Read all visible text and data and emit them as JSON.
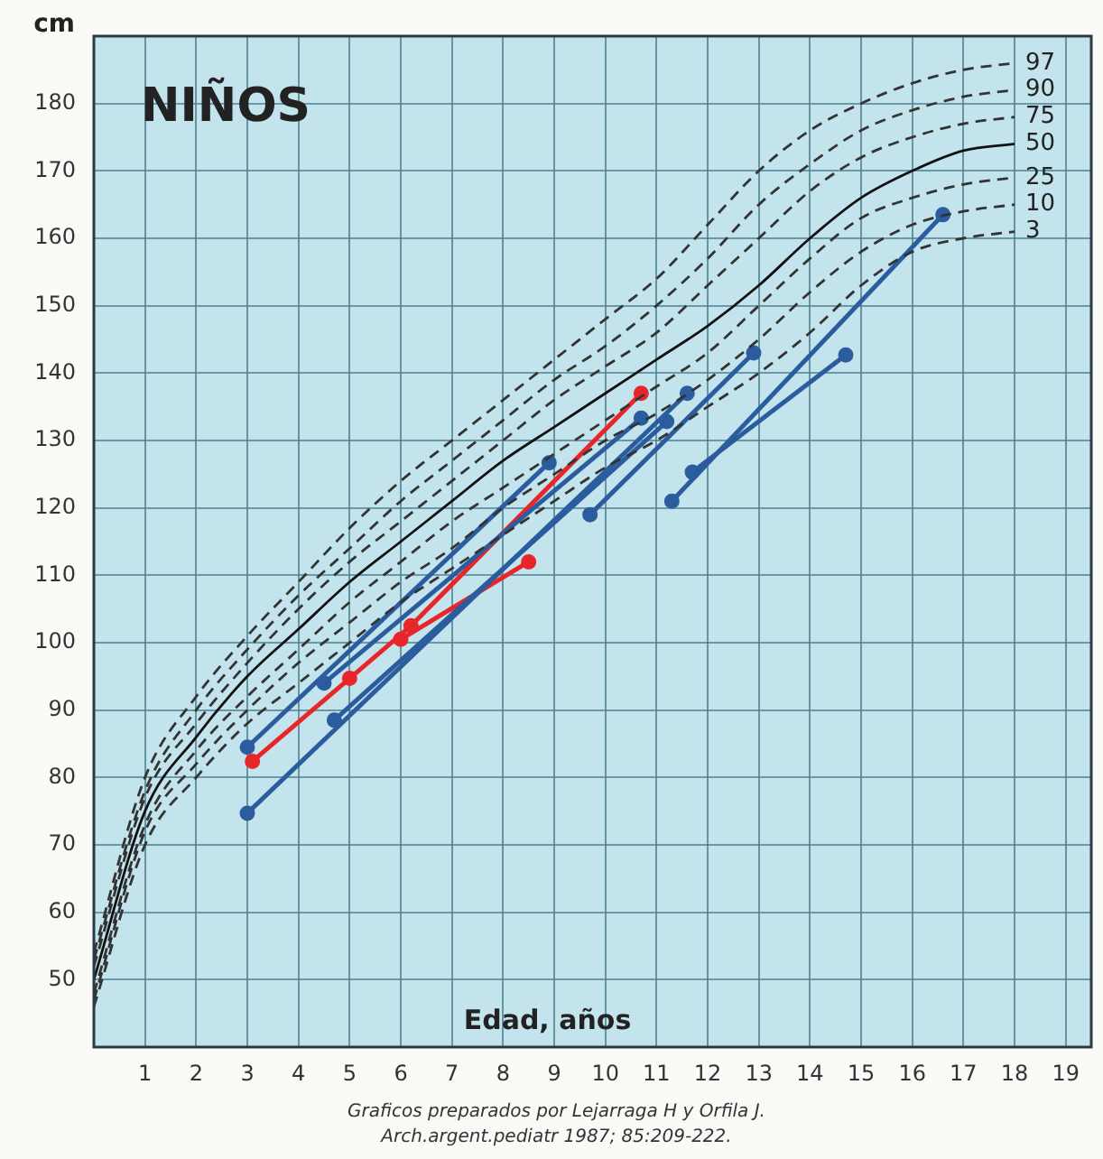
{
  "chart_data": {
    "type": "line",
    "title": "NIÑOS",
    "xlabel": "Edad, años",
    "ylabel": "cm",
    "annotations": [
      "Graficos preparados por Lejarraga H y Orfila J.",
      "Arch.argent.pediatr 1987; 85:209-222."
    ],
    "xlim": [
      0,
      19.5
    ],
    "xticks": [
      1,
      2,
      3,
      4,
      5,
      6,
      7,
      8,
      9,
      10,
      11,
      12,
      13,
      14,
      15,
      16,
      17,
      18,
      19
    ],
    "ylim": [
      40,
      190
    ],
    "yticks": [
      50,
      60,
      70,
      80,
      90,
      100,
      110,
      120,
      130,
      140,
      150,
      160,
      170,
      180
    ],
    "grid": true,
    "legend": false,
    "series": [
      {
        "name": "97",
        "color": "#333333",
        "line_style": "dashed",
        "marker": "none",
        "x": [
          0,
          1,
          2,
          3,
          4,
          5,
          6,
          7,
          8,
          9,
          10,
          11,
          12,
          13,
          14,
          15,
          16,
          17,
          18
        ],
        "values": [
          54,
          80,
          92,
          101,
          109,
          117,
          124,
          130,
          136,
          142,
          148,
          154,
          162,
          170,
          176,
          180,
          183,
          185,
          186
        ]
      },
      {
        "name": "90",
        "color": "#333333",
        "line_style": "dashed",
        "marker": "none",
        "x": [
          0,
          1,
          2,
          3,
          4,
          5,
          6,
          7,
          8,
          9,
          10,
          11,
          12,
          13,
          14,
          15,
          16,
          17,
          18
        ],
        "values": [
          53,
          78,
          90,
          99,
          107,
          114,
          121,
          127,
          133,
          139,
          144,
          150,
          157,
          165,
          171,
          176,
          179,
          181,
          182
        ]
      },
      {
        "name": "75",
        "color": "#333333",
        "line_style": "dashed",
        "marker": "none",
        "x": [
          0,
          1,
          2,
          3,
          4,
          5,
          6,
          7,
          8,
          9,
          10,
          11,
          12,
          13,
          14,
          15,
          16,
          17,
          18
        ],
        "values": [
          52,
          77,
          88,
          97,
          105,
          112,
          118,
          124,
          130,
          136,
          141,
          146,
          153,
          160,
          167,
          172,
          175,
          177,
          178
        ]
      },
      {
        "name": "50",
        "color": "#111111",
        "line_style": "solid",
        "marker": "none",
        "x": [
          0,
          1,
          2,
          3,
          4,
          5,
          6,
          7,
          8,
          9,
          10,
          11,
          12,
          13,
          14,
          15,
          16,
          17,
          18
        ],
        "values": [
          50,
          75,
          86,
          95,
          102,
          109,
          115,
          121,
          127,
          132,
          137,
          142,
          147,
          153,
          160,
          166,
          170,
          173,
          174
        ]
      },
      {
        "name": "25",
        "color": "#333333",
        "line_style": "dashed",
        "marker": "none",
        "x": [
          0,
          1,
          2,
          3,
          4,
          5,
          6,
          7,
          8,
          9,
          10,
          11,
          12,
          13,
          14,
          15,
          16,
          17,
          18
        ],
        "values": [
          48,
          73,
          84,
          92,
          99,
          106,
          112,
          118,
          123,
          128,
          133,
          138,
          143,
          150,
          157,
          163,
          166,
          168,
          169
        ]
      },
      {
        "name": "10",
        "color": "#333333",
        "line_style": "dashed",
        "marker": "none",
        "x": [
          0,
          1,
          2,
          3,
          4,
          5,
          6,
          7,
          8,
          9,
          10,
          11,
          12,
          13,
          14,
          15,
          16,
          17,
          18
        ],
        "values": [
          47,
          72,
          82,
          90,
          97,
          103,
          109,
          114,
          120,
          125,
          130,
          134,
          139,
          145,
          152,
          158,
          162,
          164,
          165
        ]
      },
      {
        "name": "3",
        "color": "#333333",
        "line_style": "dashed",
        "marker": "none",
        "x": [
          0,
          1,
          2,
          3,
          4,
          5,
          6,
          7,
          8,
          9,
          10,
          11,
          12,
          13,
          14,
          15,
          16,
          17,
          18
        ],
        "values": [
          46,
          70,
          80,
          88,
          94,
          100,
          106,
          111,
          116,
          121,
          126,
          130,
          135,
          140,
          146,
          153,
          158,
          160,
          161
        ]
      },
      {
        "color": "#2b5c9e",
        "line_style": "solid",
        "marker": "circle",
        "x": [
          3,
          8.9
        ],
        "values": [
          84.5,
          126.7
        ]
      },
      {
        "color": "#2b5c9e",
        "line_style": "solid",
        "marker": "circle",
        "x": [
          3,
          11.6
        ],
        "values": [
          74.7,
          137
        ]
      },
      {
        "color": "#2b5c9e",
        "line_style": "solid",
        "marker": "circle",
        "x": [
          4.5,
          10.7
        ],
        "values": [
          94,
          133.3
        ]
      },
      {
        "color": "#2b5c9e",
        "line_style": "solid",
        "marker": "circle",
        "x": [
          4.7,
          11.2
        ],
        "values": [
          88.5,
          132.8
        ]
      },
      {
        "color": "#2b5c9e",
        "line_style": "solid",
        "marker": "circle",
        "x": [
          9.7,
          12.9
        ],
        "values": [
          119,
          143
        ]
      },
      {
        "color": "#2b5c9e",
        "line_style": "solid",
        "marker": "circle",
        "x": [
          11.3,
          16.6
        ],
        "values": [
          121,
          163.5
        ]
      },
      {
        "color": "#2b5c9e",
        "line_style": "solid",
        "marker": "circle",
        "x": [
          11.7,
          14.7
        ],
        "values": [
          125.3,
          142.7
        ]
      },
      {
        "color": "#e8262a",
        "line_style": "solid",
        "marker": "circle",
        "x": [
          3.1,
          5,
          6.2,
          10.7
        ],
        "values": [
          82.4,
          94.7,
          102.5,
          137
        ]
      },
      {
        "color": "#e8262a",
        "line_style": "solid",
        "marker": "circle",
        "x": [
          6,
          8.5
        ],
        "values": [
          100.5,
          112
        ]
      }
    ]
  }
}
